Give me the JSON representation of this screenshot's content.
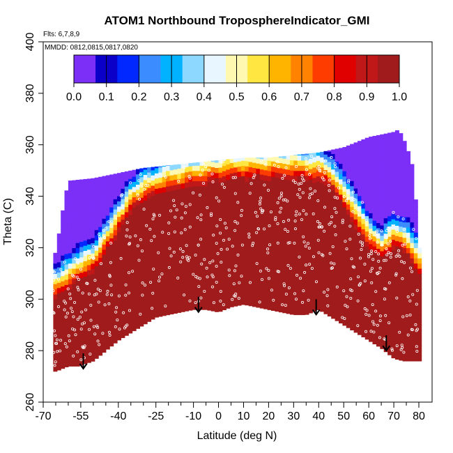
{
  "chart_data": {
    "type": "heatmap",
    "title": "ATOM1 Northbound TroposphereIndicator_GMI",
    "flights_note": "Flts: 6,7,8,9",
    "dates_note": "MMDD: 0812,0815,0817,0820",
    "xlabel": "Latitude (deg N)",
    "ylabel": "Theta (C)",
    "xlim": [
      -70,
      80
    ],
    "ylim": [
      260,
      400
    ],
    "x_major_ticks": [
      -70,
      -55,
      -40,
      -25,
      -10,
      0,
      10,
      20,
      30,
      40,
      50,
      60,
      70,
      80
    ],
    "x_minor_ticks": [
      -65,
      -60,
      -50,
      -45,
      -35,
      -30,
      -20,
      -15,
      -5,
      5,
      15,
      25,
      35,
      45,
      55,
      65,
      75
    ],
    "y_ticks": [
      260,
      280,
      300,
      320,
      340,
      360,
      380,
      400
    ],
    "colorbar": {
      "range": [
        0,
        1
      ],
      "ticks": [
        "0.0",
        "0.1",
        "0.2",
        "0.3",
        "0.4",
        "0.5",
        "0.6",
        "0.7",
        "0.8",
        "0.9",
        "1.0"
      ],
      "colors": [
        "#7b2ff7",
        "#0b00c8",
        "#0028ff",
        "#3a8cff",
        "#00b2ff",
        "#8cd8ff",
        "#e8f6ff",
        "#fff8b0",
        "#ffe640",
        "#ffb400",
        "#ff8200",
        "#ff3c00",
        "#e00000",
        "#c01818",
        "#a01c1c"
      ]
    },
    "surface_boundary": [
      [
        -65,
        272
      ],
      [
        -60,
        274
      ],
      [
        -56,
        274
      ],
      [
        -50,
        276
      ],
      [
        -45,
        280
      ],
      [
        -40,
        284
      ],
      [
        -35,
        287
      ],
      [
        -30,
        290
      ],
      [
        -25,
        293
      ],
      [
        -20,
        294
      ],
      [
        -15,
        295
      ],
      [
        -10,
        296
      ],
      [
        -5,
        296
      ],
      [
        0,
        295
      ],
      [
        5,
        297
      ],
      [
        10,
        298
      ],
      [
        15,
        297
      ],
      [
        20,
        296
      ],
      [
        25,
        295
      ],
      [
        30,
        294
      ],
      [
        35,
        294
      ],
      [
        40,
        296
      ],
      [
        45,
        293
      ],
      [
        50,
        290
      ],
      [
        55,
        287
      ],
      [
        60,
        284
      ],
      [
        65,
        281
      ],
      [
        70,
        277
      ],
      [
        74,
        276
      ],
      [
        80,
        276
      ]
    ],
    "top_boundary": [
      [
        -65,
        318
      ],
      [
        -62,
        336
      ],
      [
        -60,
        346
      ],
      [
        -50,
        347
      ],
      [
        -40,
        349
      ],
      [
        -30,
        351
      ],
      [
        -20,
        352
      ],
      [
        -10,
        353
      ],
      [
        0,
        354
      ],
      [
        10,
        355
      ],
      [
        20,
        355
      ],
      [
        30,
        356
      ],
      [
        40,
        357
      ],
      [
        50,
        359
      ],
      [
        55,
        361
      ],
      [
        60,
        363
      ],
      [
        70,
        365
      ],
      [
        72,
        366
      ],
      [
        75,
        360
      ],
      [
        78,
        350
      ],
      [
        80,
        320
      ]
    ],
    "tropopause": [
      [
        -65,
        300
      ],
      [
        -60,
        304
      ],
      [
        -55,
        308
      ],
      [
        -50,
        310
      ],
      [
        -45,
        318
      ],
      [
        -40,
        326
      ],
      [
        -35,
        334
      ],
      [
        -30,
        338
      ],
      [
        -25,
        340
      ],
      [
        -20,
        342
      ],
      [
        -15,
        343
      ],
      [
        -10,
        344
      ],
      [
        -5,
        345
      ],
      [
        0,
        346
      ],
      [
        10,
        347
      ],
      [
        20,
        347
      ],
      [
        30,
        347
      ],
      [
        40,
        346
      ],
      [
        45,
        343
      ],
      [
        50,
        336
      ],
      [
        55,
        328
      ],
      [
        60,
        320
      ],
      [
        65,
        315
      ],
      [
        70,
        320
      ],
      [
        75,
        318
      ],
      [
        80,
        310
      ]
    ],
    "transition_width_theta": 8,
    "profile_markers": [
      {
        "lat": -54,
        "theta": 273
      },
      {
        "lat": -8,
        "theta": 295
      },
      {
        "lat": 39,
        "theta": 294
      },
      {
        "lat": 67,
        "theta": 280
      }
    ]
  }
}
